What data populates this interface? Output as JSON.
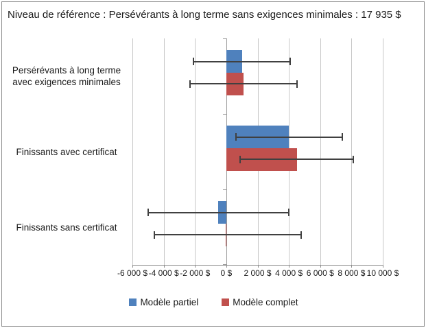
{
  "title": "Niveau de référence : Persévérants à long terme sans exigences minimales : 17 935 $",
  "colors": {
    "series_partial": "#4f81bd",
    "series_complete": "#c0504d",
    "gridline": "#c6c6c6",
    "axis": "#8c8c8c",
    "error_bar": "#404040"
  },
  "chart_data": {
    "type": "bar",
    "orientation": "horizontal",
    "title": "Niveau de référence : Persévérants à long terme sans exigences minimales : 17 935 $",
    "categories": [
      "Persérévants à long terme avec exigences minimales",
      "Finissants avec certificat",
      "Finissants sans certificat"
    ],
    "series": [
      {
        "name": "Modèle partiel",
        "color": "#4f81bd",
        "values": [
          1000,
          4000,
          -500
        ],
        "error_low": [
          -2100,
          600,
          -5000
        ],
        "error_high": [
          4100,
          7400,
          4000
        ]
      },
      {
        "name": "Modèle complet",
        "color": "#c0504d",
        "values": [
          1100,
          4500,
          -50
        ],
        "error_low": [
          -2300,
          900,
          -4600
        ],
        "error_high": [
          4500,
          8100,
          4800
        ]
      }
    ],
    "xlim": [
      -6000,
      10000
    ],
    "tick_values": [
      -6000,
      -4000,
      -2000,
      0,
      2000,
      4000,
      6000,
      8000,
      10000
    ],
    "tick_labels": [
      "-6 000 $",
      "-4 000 $",
      "-2 000 $",
      "0 $",
      "2 000 $",
      "4 000 $",
      "6 000 $",
      "8 000 $",
      "10 000 $"
    ],
    "grid": true,
    "legend_position": "bottom"
  },
  "legend": {
    "items": [
      {
        "label": "Modèle partiel",
        "color": "#4f81bd"
      },
      {
        "label": "Modèle complet",
        "color": "#c0504d"
      }
    ]
  }
}
